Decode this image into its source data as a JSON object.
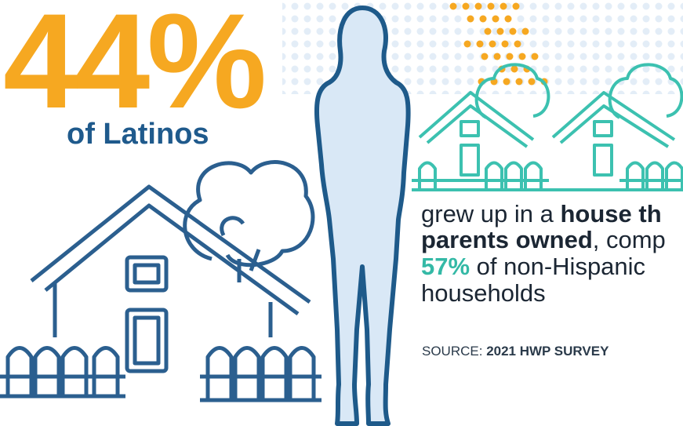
{
  "headline": {
    "stat": "44%",
    "label": "of Latinos"
  },
  "body": {
    "line1": [
      "grew up in a ",
      "house th"
    ],
    "line2": [
      "parents owned",
      ", comp"
    ],
    "line3": [
      "57%",
      " of non-Hispanic"
    ],
    "line4": [
      "households"
    ]
  },
  "source": {
    "prefix": "SOURCE: ",
    "value": "2021 HWP SURVEY"
  }
}
